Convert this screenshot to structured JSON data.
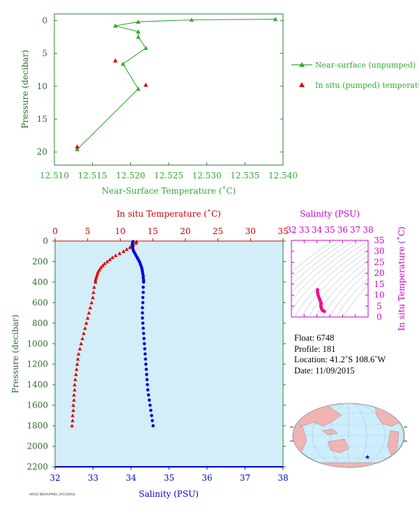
{
  "chart_data": [
    {
      "type": "scatter",
      "xlabel": "Near-Surface Temperature (˚C)",
      "ylabel": "Pressure (decibar)",
      "xlim": [
        12.51,
        12.54
      ],
      "ylim": [
        22,
        -1
      ],
      "xticks": [
        "12.510",
        "12.515",
        "12.520",
        "12.525",
        "12.530",
        "12.535",
        "12.540"
      ],
      "yticks": [
        "0",
        "5",
        "10",
        "15",
        "20"
      ],
      "legend_position": "right",
      "series": [
        {
          "name": "Near-surface (unpumped) temperature.",
          "color": "#33aa33",
          "marker": "triangle-line",
          "points": [
            [
              12.539,
              -0.2
            ],
            [
              12.528,
              -0.1
            ],
            [
              12.521,
              0.2
            ],
            [
              12.518,
              0.8
            ],
            [
              12.521,
              1.7
            ],
            [
              12.521,
              2.5
            ],
            [
              12.522,
              4.2
            ],
            [
              12.519,
              6.6
            ],
            [
              12.521,
              10.4
            ],
            [
              12.513,
              19.6
            ]
          ]
        },
        {
          "name": "In situ (pumped) temperature.",
          "color": "#dd0000",
          "marker": "triangle",
          "points": [
            [
              12.518,
              6.1
            ],
            [
              12.522,
              9.8
            ],
            [
              12.513,
              19.2
            ]
          ]
        }
      ]
    },
    {
      "type": "scatter",
      "top_label": "In situ Temperature (˚C)",
      "xlabel": "Salinity (PSU)",
      "ylabel": "Pressure (decibar)",
      "temp_lim": [
        0,
        35
      ],
      "sal_lim": [
        32,
        38
      ],
      "ylim": [
        2200,
        0
      ],
      "temp_ticks": [
        "0",
        "5",
        "10",
        "15",
        "20",
        "25",
        "30",
        "35"
      ],
      "sal_ticks": [
        "32",
        "33",
        "34",
        "35",
        "36",
        "37",
        "38"
      ],
      "p_ticks": [
        "0",
        "200",
        "400",
        "600",
        "800",
        "1000",
        "1200",
        "1400",
        "1600",
        "1800",
        "2000",
        "2200"
      ],
      "series": [
        {
          "name": "In situ Temperature",
          "color": "#dd0000",
          "pressure": [
            5,
            20,
            40,
            60,
            80,
            100,
            120,
            140,
            160,
            180,
            200,
            220,
            240,
            260,
            280,
            300,
            320,
            340,
            360,
            380,
            400,
            450,
            500,
            550,
            600,
            650,
            700,
            750,
            800,
            850,
            900,
            950,
            1000,
            1050,
            1100,
            1150,
            1200,
            1250,
            1300,
            1350,
            1400,
            1450,
            1500,
            1550,
            1600,
            1650,
            1700,
            1750,
            1800
          ],
          "temperature": [
            12.5,
            12.4,
            12.0,
            11.5,
            11.0,
            10.5,
            9.9,
            9.3,
            8.8,
            8.4,
            8.0,
            7.6,
            7.3,
            7.0,
            6.8,
            6.6,
            6.5,
            6.4,
            6.3,
            6.2,
            6.2,
            6.0,
            5.9,
            5.8,
            5.6,
            5.4,
            5.2,
            5.0,
            4.8,
            4.6,
            4.4,
            4.2,
            4.0,
            3.8,
            3.6,
            3.5,
            3.4,
            3.3,
            3.2,
            3.1,
            3.0,
            3.0,
            2.9,
            2.9,
            2.8,
            2.8,
            2.7,
            2.7,
            2.6
          ]
        },
        {
          "name": "Salinity",
          "color": "#0000dd",
          "pressure": [
            5,
            20,
            40,
            60,
            80,
            100,
            120,
            140,
            160,
            180,
            200,
            220,
            240,
            260,
            280,
            300,
            320,
            340,
            360,
            380,
            400,
            450,
            500,
            550,
            600,
            650,
            700,
            750,
            800,
            850,
            900,
            950,
            1000,
            1050,
            1100,
            1150,
            1200,
            1250,
            1300,
            1350,
            1400,
            1450,
            1500,
            1550,
            1600,
            1650,
            1700,
            1750,
            1800
          ],
          "salinity": [
            34.05,
            34.04,
            34.03,
            34.04,
            34.05,
            34.07,
            34.1,
            34.13,
            34.16,
            34.19,
            34.22,
            34.24,
            34.26,
            34.28,
            34.29,
            34.3,
            34.31,
            34.32,
            34.32,
            34.33,
            34.33,
            34.32,
            34.32,
            34.31,
            34.31,
            34.3,
            34.3,
            34.3,
            34.31,
            34.32,
            34.33,
            34.34,
            34.35,
            34.36,
            34.37,
            34.38,
            34.39,
            34.4,
            34.41,
            34.42,
            34.43,
            34.44,
            34.46,
            34.48,
            34.5,
            34.52,
            34.54,
            34.56,
            34.58
          ]
        }
      ]
    },
    {
      "type": "scatter",
      "title": "Salinity (PSU)",
      "ylabel": "In situ Temperature (˚C)",
      "xlim": [
        32,
        38
      ],
      "ylim": [
        0,
        35
      ],
      "xticks": [
        "32",
        "33",
        "34",
        "35",
        "36",
        "37",
        "38"
      ],
      "yticks": [
        "0",
        "5",
        "10",
        "15",
        "20",
        "25",
        "30",
        "35"
      ],
      "points_color": "#ee1188"
    }
  ],
  "float_info": {
    "float": "Float:  6748",
    "profile": "Profile:  181",
    "location": "Location:  41.2˚S  108.6˚W",
    "date": "Date:  11/09/2015"
  },
  "map": {
    "ocean_color": "#cceeff",
    "land_color": "#f4b3b3",
    "marker_color": "#0000cc"
  },
  "footer_note": "ARGO NOAA/PMEL 20150910"
}
